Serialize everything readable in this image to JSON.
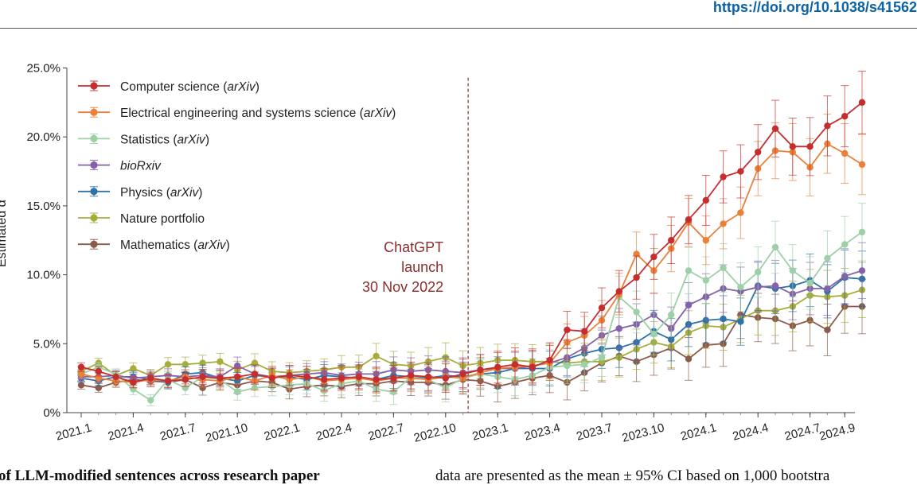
{
  "header": {
    "doi": "https://doi.org/10.1038/s41562"
  },
  "caption": {
    "left": "of LLM-modified sentences across research paper",
    "right": "data are presented as the mean ± 95% CI based on 1,000 bootstra"
  },
  "annotation": {
    "lines": [
      "ChatGPT",
      "launch",
      "30 Nov 2022"
    ],
    "color": "#8b2e2e",
    "x_index": 22.3
  },
  "chart_data": {
    "type": "line",
    "ylabel": "Estimated α",
    "ylim": [
      0,
      25
    ],
    "yticks": [
      "0%",
      "5.0%",
      "10.0%",
      "15.0%",
      "20.0%",
      "25.0%"
    ],
    "ytick_values": [
      0,
      5,
      10,
      15,
      20,
      25
    ],
    "x_tick_labels": [
      "2021.1",
      "2021.4",
      "2021.7",
      "2021.10",
      "2022.1",
      "2022.4",
      "2022.7",
      "2022.10",
      "2023.1",
      "2023.4",
      "2023.7",
      "2023.10",
      "2024.1",
      "2024.4",
      "2024.7",
      "2024.9"
    ],
    "x_tick_indices": [
      0,
      3,
      6,
      9,
      12,
      15,
      18,
      21,
      24,
      27,
      30,
      33,
      36,
      39,
      42,
      44
    ],
    "legend_position": "top-left",
    "series": [
      {
        "name": "Computer science",
        "suffix": "(arXiv)",
        "color": "#c62d2f",
        "values": [
          3.3,
          3.0,
          2.6,
          2.2,
          2.5,
          2.3,
          2.4,
          2.6,
          2.5,
          2.6,
          2.8,
          2.5,
          2.7,
          2.6,
          2.4,
          2.5,
          2.6,
          2.4,
          2.5,
          2.7,
          2.6,
          2.5,
          2.8,
          3.1,
          3.3,
          3.5,
          3.3,
          3.8,
          6.0,
          5.9,
          7.6,
          8.8,
          9.8,
          11.3,
          12.5,
          14.0,
          15.4,
          17.1,
          17.5,
          18.9,
          20.6,
          19.3,
          19.3,
          20.8,
          21.5,
          22.5
        ]
      },
      {
        "name": "Electrical engineering and systems science",
        "suffix": "(arXiv)",
        "color": "#ea8138",
        "values": [
          2.8,
          2.5,
          2.3,
          2.2,
          2.4,
          2.3,
          2.6,
          2.4,
          2.3,
          2.6,
          2.3,
          2.7,
          2.4,
          2.6,
          2.3,
          2.4,
          2.5,
          2.3,
          2.5,
          2.5,
          2.4,
          2.6,
          2.5,
          2.9,
          3.2,
          3.3,
          3.4,
          3.6,
          5.1,
          5.6,
          6.7,
          8.6,
          11.5,
          10.3,
          11.9,
          13.8,
          12.5,
          13.7,
          14.5,
          17.7,
          19.0,
          18.9,
          17.8,
          19.5,
          18.8,
          18.0
        ]
      },
      {
        "name": "Statistics",
        "suffix": "(arXiv)",
        "color": "#9dd0a7",
        "values": [
          2.8,
          3.3,
          2.8,
          1.7,
          0.9,
          2.4,
          1.8,
          2.6,
          2.4,
          1.5,
          1.8,
          1.9,
          2.0,
          2.1,
          1.6,
          2.1,
          2.3,
          1.7,
          1.5,
          2.6,
          2.4,
          1.8,
          2.5,
          2.8,
          2.6,
          2.4,
          2.7,
          3.3,
          3.4,
          3.5,
          4.0,
          8.4,
          7.3,
          5.7,
          7.1,
          10.3,
          9.6,
          10.5,
          9.1,
          10.2,
          12.0,
          10.3,
          9.4,
          11.2,
          12.2,
          13.1
        ]
      },
      {
        "name": "bioRxiv",
        "suffix": "",
        "color": "#8462aa",
        "values": [
          2.6,
          2.6,
          2.7,
          2.5,
          2.6,
          2.7,
          2.6,
          2.7,
          2.6,
          3.4,
          2.8,
          2.6,
          2.7,
          2.8,
          2.9,
          2.7,
          2.8,
          2.8,
          3.1,
          3.0,
          3.1,
          3.0,
          2.9,
          3.1,
          3.2,
          3.2,
          3.4,
          3.6,
          4.0,
          4.7,
          5.6,
          6.1,
          6.4,
          7.1,
          6.1,
          7.8,
          8.4,
          9.0,
          8.8,
          9.1,
          9.2,
          8.6,
          9.0,
          9.0,
          9.9,
          10.3
        ]
      },
      {
        "name": "Physics",
        "suffix": "(arXiv)",
        "color": "#2e73a8",
        "values": [
          2.5,
          2.3,
          2.6,
          2.6,
          2.4,
          2.2,
          2.8,
          2.9,
          2.5,
          2.3,
          2.7,
          2.6,
          2.6,
          2.4,
          2.7,
          2.6,
          2.5,
          2.4,
          2.7,
          2.6,
          2.5,
          2.7,
          2.6,
          2.8,
          2.9,
          3.2,
          3.2,
          3.2,
          3.9,
          4.3,
          4.6,
          4.7,
          5.1,
          5.9,
          5.3,
          6.4,
          6.7,
          6.8,
          6.6,
          9.2,
          9.0,
          9.2,
          9.6,
          8.8,
          9.8,
          9.7
        ]
      },
      {
        "name": "Nature portfolio",
        "suffix": "",
        "color": "#a6ad3b",
        "values": [
          3.0,
          3.6,
          2.7,
          3.2,
          2.7,
          3.5,
          3.5,
          3.6,
          3.7,
          3.1,
          3.6,
          3.0,
          2.9,
          3.0,
          3.1,
          3.3,
          3.3,
          4.1,
          3.5,
          3.4,
          3.7,
          4.0,
          3.4,
          3.6,
          3.8,
          3.8,
          3.7,
          3.7,
          3.6,
          3.7,
          3.7,
          4.0,
          4.6,
          5.1,
          4.8,
          5.8,
          6.3,
          6.2,
          6.8,
          7.4,
          7.4,
          7.7,
          8.5,
          8.4,
          8.5,
          8.9
        ]
      },
      {
        "name": "Mathematics",
        "suffix": "(arXiv)",
        "color": "#8a5a4a",
        "values": [
          2.0,
          1.8,
          2.2,
          2.4,
          2.3,
          2.2,
          2.4,
          1.8,
          2.2,
          2.0,
          2.3,
          2.2,
          1.7,
          1.9,
          2.0,
          1.9,
          2.1,
          2.1,
          2.3,
          2.2,
          2.2,
          2.0,
          2.4,
          2.3,
          1.9,
          2.2,
          2.5,
          2.7,
          2.2,
          2.9,
          3.6,
          4.1,
          3.7,
          4.2,
          4.7,
          3.9,
          4.9,
          5.0,
          7.1,
          6.9,
          6.8,
          6.3,
          6.7,
          6.0,
          7.7,
          7.7
        ]
      }
    ]
  }
}
